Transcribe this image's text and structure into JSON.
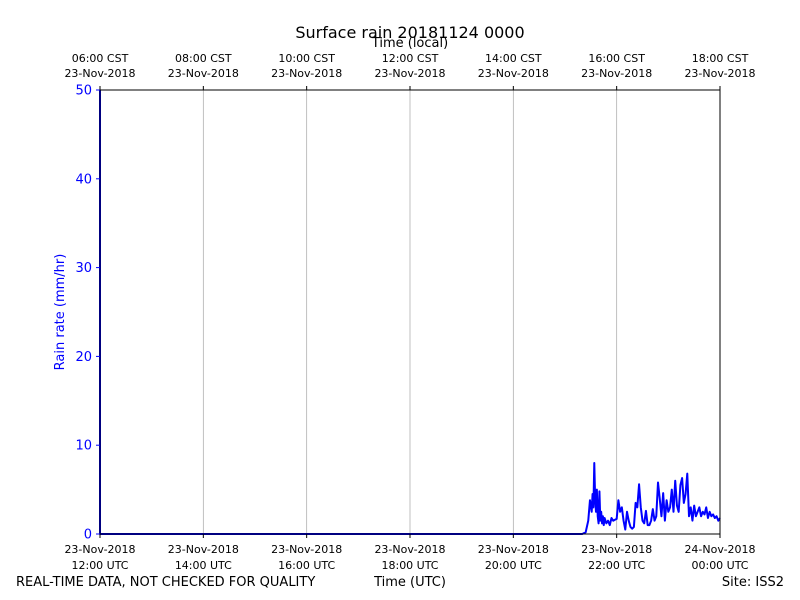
{
  "chart_data": {
    "type": "line",
    "title": "Surface rain 20181124 0000",
    "xlabel": "Time (UTC)",
    "x2label": "Time (local)",
    "ylabel": "Rain rate (mm/hr)",
    "xlim": [
      "2018-11-23T12:00Z",
      "2018-11-24T00:00Z"
    ],
    "ylim": [
      0,
      50
    ],
    "yticks": [
      0,
      10,
      20,
      30,
      40,
      50
    ],
    "grid": "x-major",
    "colors": {
      "series": "#0000ff",
      "grid": "#b0b0b0",
      "axis": "#000000"
    },
    "bottom_ticks": [
      {
        "x": "2018-11-23T12:00Z",
        "line1": "23-Nov-2018",
        "line2": "12:00 UTC"
      },
      {
        "x": "2018-11-23T14:00Z",
        "line1": "23-Nov-2018",
        "line2": "14:00 UTC"
      },
      {
        "x": "2018-11-23T16:00Z",
        "line1": "23-Nov-2018",
        "line2": "16:00 UTC"
      },
      {
        "x": "2018-11-23T18:00Z",
        "line1": "23-Nov-2018",
        "line2": "18:00 UTC"
      },
      {
        "x": "2018-11-23T20:00Z",
        "line1": "23-Nov-2018",
        "line2": "20:00 UTC"
      },
      {
        "x": "2018-11-23T22:00Z",
        "line1": "23-Nov-2018",
        "line2": "22:00 UTC"
      },
      {
        "x": "2018-11-24T00:00Z",
        "line1": "24-Nov-2018",
        "line2": "00:00 UTC"
      }
    ],
    "top_ticks": [
      {
        "x": "2018-11-23T12:00Z",
        "line1": "06:00 CST",
        "line2": "23-Nov-2018"
      },
      {
        "x": "2018-11-23T14:00Z",
        "line1": "08:00 CST",
        "line2": "23-Nov-2018"
      },
      {
        "x": "2018-11-23T16:00Z",
        "line1": "10:00 CST",
        "line2": "23-Nov-2018"
      },
      {
        "x": "2018-11-23T18:00Z",
        "line1": "12:00 CST",
        "line2": "23-Nov-2018"
      },
      {
        "x": "2018-11-23T20:00Z",
        "line1": "14:00 CST",
        "line2": "23-Nov-2018"
      },
      {
        "x": "2018-11-23T22:00Z",
        "line1": "16:00 CST",
        "line2": "23-Nov-2018"
      },
      {
        "x": "2018-11-24T00:00Z",
        "line1": "18:00 CST",
        "line2": "23-Nov-2018"
      }
    ],
    "series": [
      {
        "x": [
          "2018-11-23T12:00Z",
          "2018-11-23T12:00Z",
          "2018-11-23T12:01Z",
          "2018-11-23T21:20Z",
          "2018-11-23T21:24Z",
          "2018-11-23T21:27Z",
          "2018-11-23T21:29Z",
          "2018-11-23T21:31Z",
          "2018-11-23T21:32Z",
          "2018-11-23T21:33Z",
          "2018-11-23T21:34Z",
          "2018-11-23T21:35Z",
          "2018-11-23T21:36Z",
          "2018-11-23T21:37Z",
          "2018-11-23T21:38Z",
          "2018-11-23T21:39Z",
          "2018-11-23T21:40Z",
          "2018-11-23T21:41Z",
          "2018-11-23T21:42Z",
          "2018-11-23T21:43Z",
          "2018-11-23T21:44Z",
          "2018-11-23T21:45Z",
          "2018-11-23T21:46Z",
          "2018-11-23T21:48Z",
          "2018-11-23T21:50Z",
          "2018-11-23T21:52Z",
          "2018-11-23T21:54Z",
          "2018-11-23T21:56Z",
          "2018-11-23T21:58Z",
          "2018-11-23T22:00Z",
          "2018-11-23T22:02Z",
          "2018-11-23T22:04Z",
          "2018-11-23T22:06Z",
          "2018-11-23T22:08Z",
          "2018-11-23T22:10Z",
          "2018-11-23T22:12Z",
          "2018-11-23T22:14Z",
          "2018-11-23T22:16Z",
          "2018-11-23T22:18Z",
          "2018-11-23T22:20Z",
          "2018-11-23T22:22Z",
          "2018-11-23T22:24Z",
          "2018-11-23T22:26Z",
          "2018-11-23T22:28Z",
          "2018-11-23T22:30Z",
          "2018-11-23T22:32Z",
          "2018-11-23T22:34Z",
          "2018-11-23T22:36Z",
          "2018-11-23T22:38Z",
          "2018-11-23T22:40Z",
          "2018-11-23T22:42Z",
          "2018-11-23T22:44Z",
          "2018-11-23T22:46Z",
          "2018-11-23T22:48Z",
          "2018-11-23T22:50Z",
          "2018-11-23T22:52Z",
          "2018-11-23T22:54Z",
          "2018-11-23T22:56Z",
          "2018-11-23T22:58Z",
          "2018-11-23T23:00Z",
          "2018-11-23T23:02Z",
          "2018-11-23T23:04Z",
          "2018-11-23T23:06Z",
          "2018-11-23T23:08Z",
          "2018-11-23T23:10Z",
          "2018-11-23T23:12Z",
          "2018-11-23T23:14Z",
          "2018-11-23T23:16Z",
          "2018-11-23T23:18Z",
          "2018-11-23T23:20Z",
          "2018-11-23T23:22Z",
          "2018-11-23T23:24Z",
          "2018-11-23T23:26Z",
          "2018-11-23T23:28Z",
          "2018-11-23T23:30Z",
          "2018-11-23T23:32Z",
          "2018-11-23T23:34Z",
          "2018-11-23T23:36Z",
          "2018-11-23T23:38Z",
          "2018-11-23T23:40Z",
          "2018-11-23T23:42Z",
          "2018-11-23T23:44Z",
          "2018-11-23T23:46Z",
          "2018-11-23T23:48Z",
          "2018-11-23T23:50Z",
          "2018-11-23T23:52Z",
          "2018-11-23T23:54Z",
          "2018-11-23T23:56Z",
          "2018-11-23T23:58Z",
          "2018-11-24T00:00Z"
        ],
        "y": [
          50,
          0,
          0,
          0,
          0.2,
          1.5,
          3.8,
          2.5,
          4.5,
          3.0,
          8.0,
          4.0,
          2.5,
          5.0,
          2.0,
          1.2,
          4.8,
          1.5,
          2.5,
          1.2,
          2.0,
          1.0,
          1.8,
          1.2,
          1.5,
          1.0,
          1.8,
          1.5,
          1.6,
          1.7,
          3.8,
          2.5,
          3.0,
          1.5,
          0.5,
          2.5,
          1.5,
          0.8,
          0.6,
          0.8,
          3.5,
          3.0,
          5.6,
          3.0,
          1.5,
          1.2,
          2.6,
          1.0,
          1.0,
          1.5,
          2.8,
          1.5,
          2.0,
          5.8,
          4.0,
          2.0,
          4.6,
          1.5,
          3.8,
          2.5,
          3.0,
          5.0,
          2.5,
          6.0,
          3.2,
          2.5,
          5.5,
          6.3,
          3.5,
          4.5,
          6.8,
          2.0,
          3.0,
          1.5,
          3.2,
          2.0,
          2.5,
          3.0,
          2.0,
          2.5,
          2.2,
          3.0,
          1.8,
          2.5,
          2.0,
          2.2,
          1.8,
          2.0,
          1.5,
          1.8
        ]
      }
    ]
  },
  "footer": {
    "disclaimer": "REAL-TIME DATA, NOT CHECKED FOR QUALITY",
    "site": "Site: ISS2"
  }
}
